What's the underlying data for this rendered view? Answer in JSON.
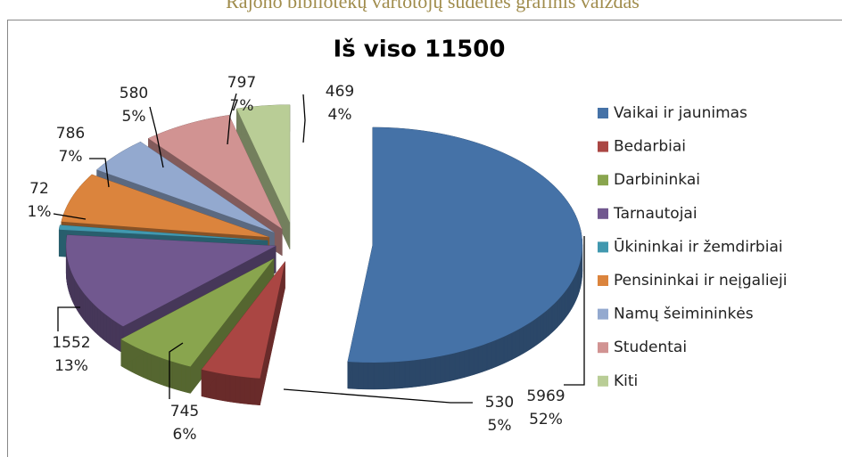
{
  "page_title": "Rajono bibliotekų vartotojų sudėties grafinis vaizdas",
  "chart_data": {
    "type": "pie",
    "title": "Iš viso 11500",
    "categories": [
      "Vaikai ir jaunimas",
      "Bedarbiai",
      "Darbininkai",
      "Tarnautojai",
      "Ūkininkai ir žemdirbiai",
      "Pensininkai ir neįgalieji",
      "Namų šeimininkės",
      "Studentai",
      "Kiti"
    ],
    "values": [
      5969,
      530,
      745,
      1552,
      72,
      786,
      580,
      797,
      469
    ],
    "percent_labels": [
      "52%",
      "5%",
      "6%",
      "13%",
      "1%",
      "7%",
      "5%",
      "7%",
      "4%"
    ],
    "colors": [
      "#4572a7",
      "#aa4643",
      "#89a54e",
      "#71588f",
      "#4198af",
      "#db843d",
      "#93a9cf",
      "#d19392",
      "#b9cd96"
    ],
    "legend": "right"
  }
}
